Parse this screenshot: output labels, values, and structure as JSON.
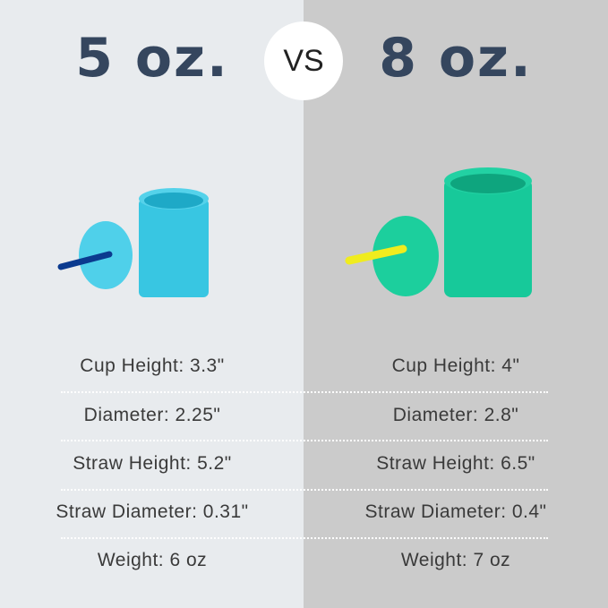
{
  "left": {
    "title": "5 oz.",
    "cup_color": "#3cc9e4",
    "straw_color": "#0b3a8f"
  },
  "right": {
    "title": "8 oz.",
    "cup_color": "#17c99a",
    "straw_color": "#f0ec1e"
  },
  "vs_label": "VS",
  "specs": [
    {
      "left": "Cup Height: 3.3\"",
      "right": "Cup Height: 4\""
    },
    {
      "left": "Diameter: 2.25\"",
      "right": "Diameter: 2.8\""
    },
    {
      "left": "Straw Height: 5.2\"",
      "right": "Straw Height: 6.5\""
    },
    {
      "left": "Straw Diameter: 0.31\"",
      "right": "Straw Diameter: 0.4\""
    },
    {
      "left": "Weight: 6 oz",
      "right": "Weight: 7 oz"
    }
  ]
}
